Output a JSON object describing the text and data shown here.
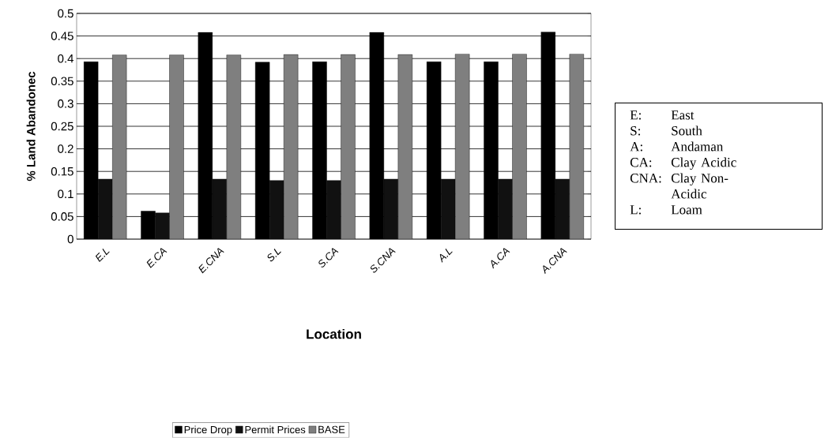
{
  "chart_data": {
    "type": "bar",
    "xlabel": "Location",
    "ylabel": "% Land Abandonec",
    "categories": [
      "E.L",
      "E.CA",
      "E.CNA",
      "S.L",
      "S.CA",
      "S.CNA",
      "A.L",
      "A.CA",
      "A.CNA"
    ],
    "series": [
      {
        "name": "Price Drop",
        "color": "#000000",
        "values": [
          0.393,
          0.062,
          0.458,
          0.392,
          0.393,
          0.458,
          0.393,
          0.393,
          0.459
        ]
      },
      {
        "name": "Permit Prices",
        "color": "#111111",
        "values": [
          0.133,
          0.058,
          0.133,
          0.13,
          0.13,
          0.133,
          0.133,
          0.133,
          0.133
        ]
      },
      {
        "name": "BASE",
        "color": "#7f7f7f",
        "values": [
          0.408,
          0.408,
          0.408,
          0.409,
          0.409,
          0.409,
          0.41,
          0.41,
          0.41
        ]
      }
    ],
    "ylim": [
      0,
      0.5
    ],
    "yticks": [
      0,
      0.05,
      0.1,
      0.15,
      0.2,
      0.25,
      0.3,
      0.35,
      0.4,
      0.45,
      0.5
    ],
    "grid": "y",
    "legend": "bottom",
    "annotations": [
      "E:",
      "East",
      "S:",
      "South",
      "A:",
      "Andaman",
      "CA:",
      "Clay Acidic",
      "CNA:",
      "Clay Non-Acidic",
      "L:",
      "Loam"
    ]
  }
}
